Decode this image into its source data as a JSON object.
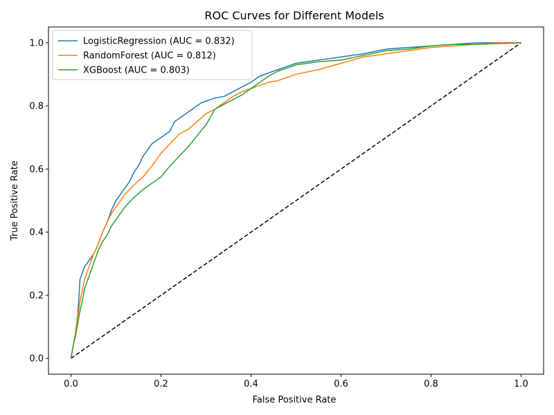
{
  "chart_data": {
    "type": "line",
    "title": "ROC Curves for Different Models",
    "xlabel": "False Positive Rate",
    "ylabel": "True Positive Rate",
    "xlim": [
      -0.05,
      1.05
    ],
    "ylim": [
      -0.05,
      1.05
    ],
    "xticks": [
      0.0,
      0.2,
      0.4,
      0.6,
      0.8,
      1.0
    ],
    "yticks": [
      0.0,
      0.2,
      0.4,
      0.6,
      0.8,
      1.0
    ],
    "tick_labels_x": [
      "0.0",
      "0.2",
      "0.4",
      "0.6",
      "0.8",
      "1.0"
    ],
    "tick_labels_y": [
      "0.0",
      "0.2",
      "0.4",
      "0.6",
      "0.8",
      "1.0"
    ],
    "legend_position": "upper-left",
    "grid": false,
    "series": [
      {
        "name": "LogisticRegression (AUC = 0.832)",
        "color": "#1f77b4",
        "points": [
          [
            0,
            0
          ],
          [
            0.005,
            0.04
          ],
          [
            0.01,
            0.08
          ],
          [
            0.015,
            0.14
          ],
          [
            0.018,
            0.2
          ],
          [
            0.02,
            0.25
          ],
          [
            0.025,
            0.27
          ],
          [
            0.03,
            0.29
          ],
          [
            0.04,
            0.31
          ],
          [
            0.05,
            0.33
          ],
          [
            0.06,
            0.36
          ],
          [
            0.07,
            0.4
          ],
          [
            0.08,
            0.43
          ],
          [
            0.09,
            0.47
          ],
          [
            0.1,
            0.5
          ],
          [
            0.11,
            0.52
          ],
          [
            0.12,
            0.54
          ],
          [
            0.13,
            0.56
          ],
          [
            0.14,
            0.59
          ],
          [
            0.15,
            0.61
          ],
          [
            0.16,
            0.64
          ],
          [
            0.17,
            0.66
          ],
          [
            0.18,
            0.68
          ],
          [
            0.19,
            0.69
          ],
          [
            0.2,
            0.7
          ],
          [
            0.22,
            0.72
          ],
          [
            0.23,
            0.75
          ],
          [
            0.25,
            0.77
          ],
          [
            0.27,
            0.79
          ],
          [
            0.29,
            0.81
          ],
          [
            0.3,
            0.815
          ],
          [
            0.32,
            0.825
          ],
          [
            0.34,
            0.83
          ],
          [
            0.36,
            0.845
          ],
          [
            0.38,
            0.86
          ],
          [
            0.4,
            0.875
          ],
          [
            0.42,
            0.895
          ],
          [
            0.44,
            0.905
          ],
          [
            0.46,
            0.915
          ],
          [
            0.48,
            0.925
          ],
          [
            0.5,
            0.935
          ],
          [
            0.55,
            0.945
          ],
          [
            0.6,
            0.955
          ],
          [
            0.65,
            0.965
          ],
          [
            0.7,
            0.98
          ],
          [
            0.75,
            0.985
          ],
          [
            0.8,
            0.99
          ],
          [
            0.85,
            0.995
          ],
          [
            0.9,
            1.0
          ],
          [
            1.0,
            1.0
          ]
        ]
      },
      {
        "name": "RandomForest (AUC = 0.812)",
        "color": "#ff7f0e",
        "points": [
          [
            0,
            0
          ],
          [
            0.005,
            0.04
          ],
          [
            0.01,
            0.08
          ],
          [
            0.015,
            0.13
          ],
          [
            0.02,
            0.18
          ],
          [
            0.03,
            0.25
          ],
          [
            0.04,
            0.29
          ],
          [
            0.05,
            0.33
          ],
          [
            0.06,
            0.36
          ],
          [
            0.07,
            0.4
          ],
          [
            0.08,
            0.43
          ],
          [
            0.09,
            0.46
          ],
          [
            0.1,
            0.48
          ],
          [
            0.12,
            0.52
          ],
          [
            0.14,
            0.55
          ],
          [
            0.16,
            0.575
          ],
          [
            0.18,
            0.61
          ],
          [
            0.2,
            0.65
          ],
          [
            0.22,
            0.68
          ],
          [
            0.24,
            0.71
          ],
          [
            0.26,
            0.725
          ],
          [
            0.28,
            0.75
          ],
          [
            0.3,
            0.775
          ],
          [
            0.32,
            0.79
          ],
          [
            0.34,
            0.81
          ],
          [
            0.36,
            0.83
          ],
          [
            0.38,
            0.845
          ],
          [
            0.4,
            0.855
          ],
          [
            0.42,
            0.865
          ],
          [
            0.44,
            0.875
          ],
          [
            0.46,
            0.88
          ],
          [
            0.48,
            0.89
          ],
          [
            0.5,
            0.9
          ],
          [
            0.55,
            0.915
          ],
          [
            0.6,
            0.935
          ],
          [
            0.65,
            0.955
          ],
          [
            0.7,
            0.965
          ],
          [
            0.75,
            0.975
          ],
          [
            0.8,
            0.985
          ],
          [
            0.85,
            0.99
          ],
          [
            0.9,
            0.995
          ],
          [
            0.95,
            1.0
          ],
          [
            1.0,
            1.0
          ]
        ]
      },
      {
        "name": "XGBoost (AUC = 0.803)",
        "color": "#2ca02c",
        "points": [
          [
            0,
            0
          ],
          [
            0.005,
            0.04
          ],
          [
            0.01,
            0.07
          ],
          [
            0.015,
            0.11
          ],
          [
            0.02,
            0.15
          ],
          [
            0.025,
            0.18
          ],
          [
            0.03,
            0.22
          ],
          [
            0.04,
            0.26
          ],
          [
            0.05,
            0.3
          ],
          [
            0.06,
            0.34
          ],
          [
            0.07,
            0.37
          ],
          [
            0.08,
            0.39
          ],
          [
            0.09,
            0.42
          ],
          [
            0.1,
            0.44
          ],
          [
            0.12,
            0.48
          ],
          [
            0.14,
            0.51
          ],
          [
            0.16,
            0.535
          ],
          [
            0.18,
            0.555
          ],
          [
            0.2,
            0.575
          ],
          [
            0.22,
            0.61
          ],
          [
            0.24,
            0.64
          ],
          [
            0.26,
            0.67
          ],
          [
            0.28,
            0.705
          ],
          [
            0.3,
            0.74
          ],
          [
            0.32,
            0.79
          ],
          [
            0.34,
            0.805
          ],
          [
            0.36,
            0.82
          ],
          [
            0.38,
            0.835
          ],
          [
            0.4,
            0.855
          ],
          [
            0.42,
            0.875
          ],
          [
            0.44,
            0.895
          ],
          [
            0.46,
            0.91
          ],
          [
            0.48,
            0.92
          ],
          [
            0.5,
            0.93
          ],
          [
            0.55,
            0.94
          ],
          [
            0.6,
            0.945
          ],
          [
            0.65,
            0.96
          ],
          [
            0.7,
            0.975
          ],
          [
            0.75,
            0.98
          ],
          [
            0.8,
            0.99
          ],
          [
            0.85,
            0.995
          ],
          [
            0.9,
            0.995
          ],
          [
            1.0,
            1.0
          ]
        ]
      },
      {
        "name": "Chance",
        "color": "#000000",
        "dashed": true,
        "legend": false,
        "points": [
          [
            0,
            0
          ],
          [
            1,
            1
          ]
        ]
      }
    ]
  }
}
